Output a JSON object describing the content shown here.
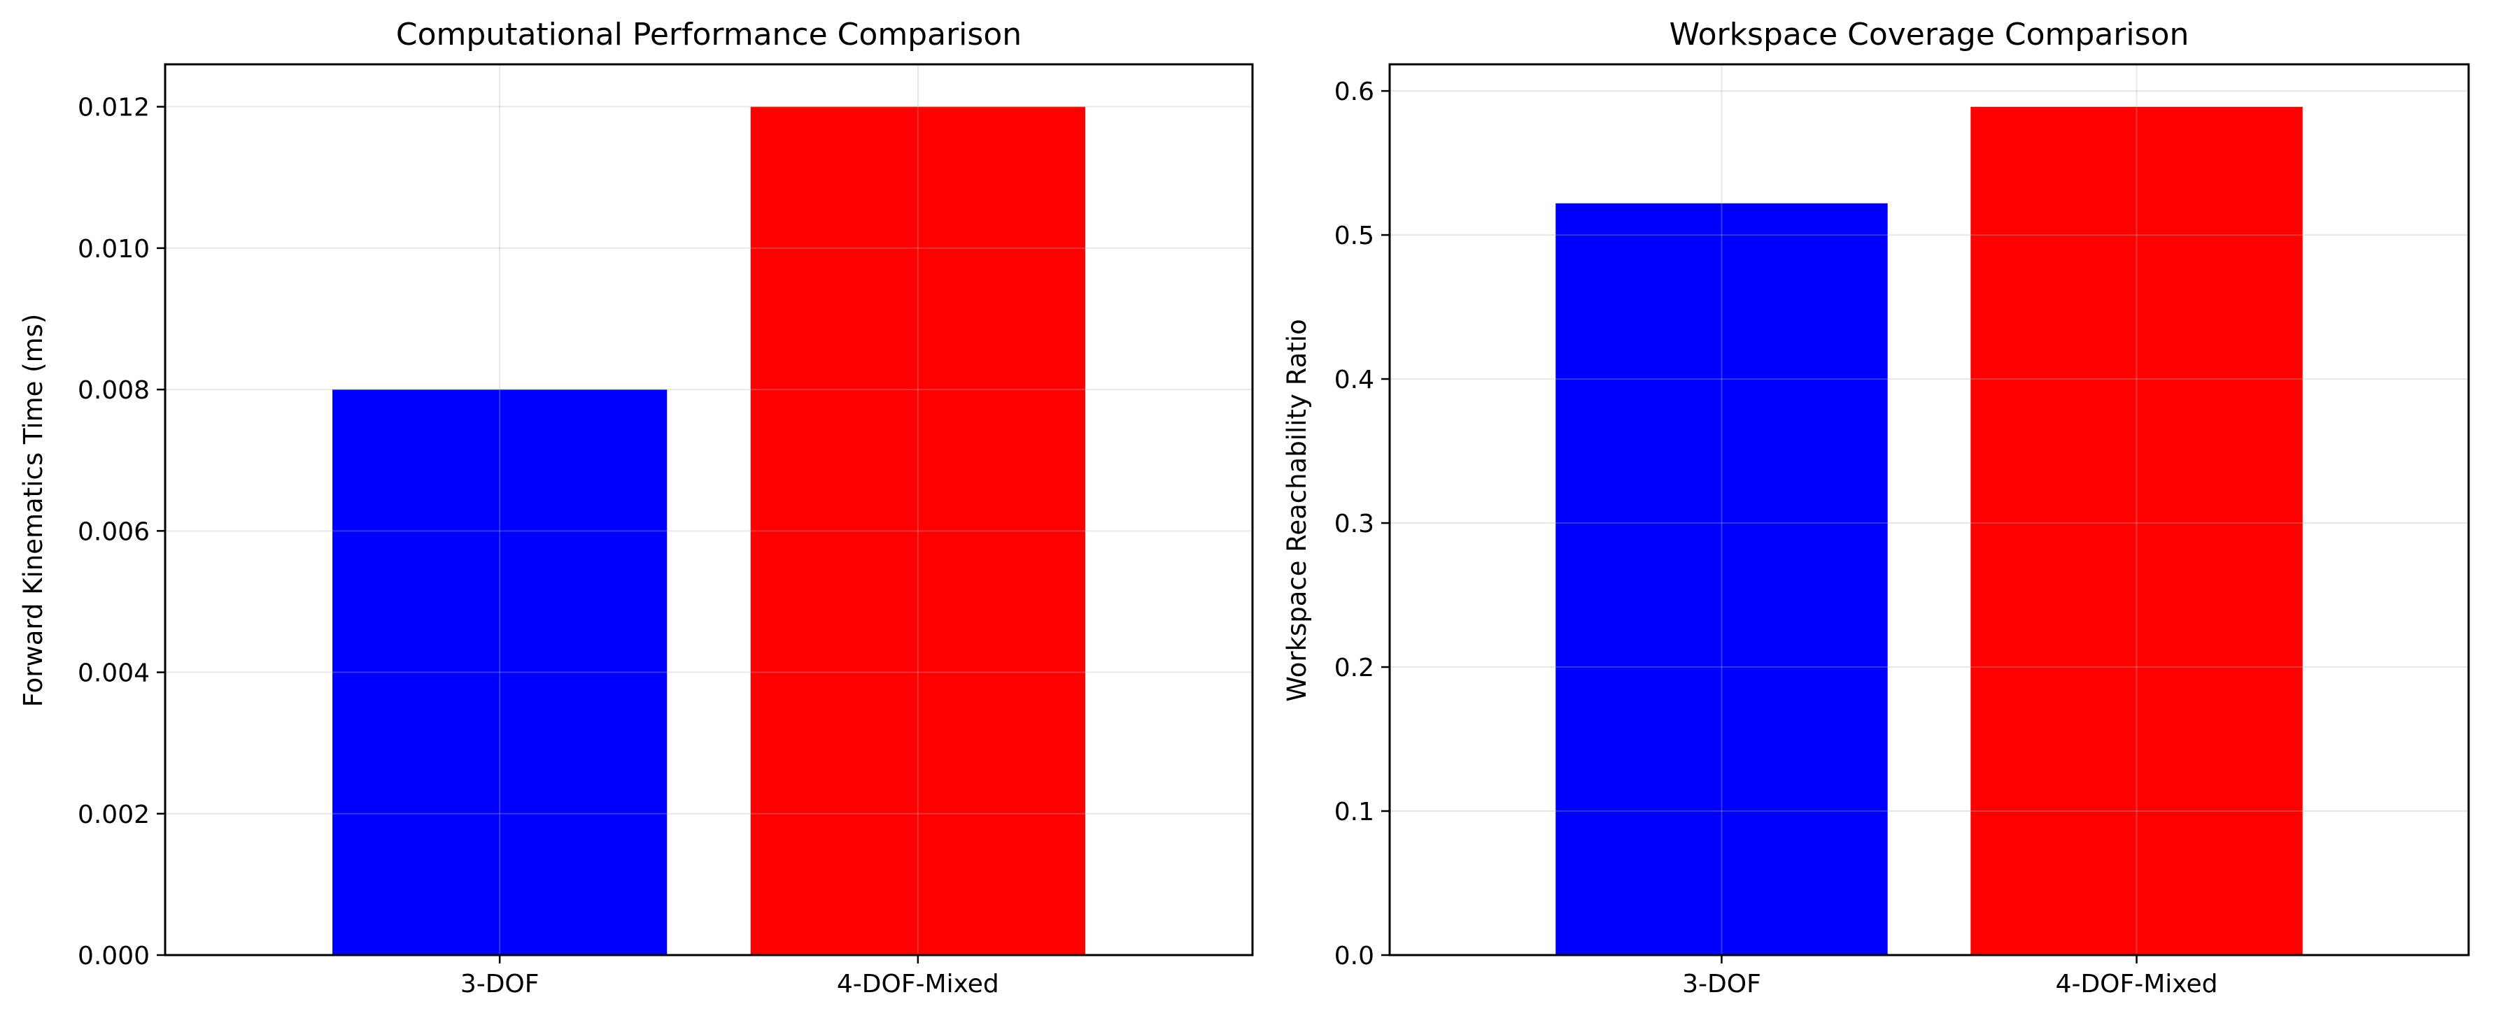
{
  "chart_data": [
    {
      "type": "bar",
      "title": "Computational Performance Comparison",
      "xlabel": "",
      "ylabel": "Forward Kinematics Time (ms)",
      "categories": [
        "3-DOF",
        "4-DOF-Mixed"
      ],
      "values": [
        0.008,
        0.012
      ],
      "colors": [
        "#0000ff",
        "#ff0000"
      ],
      "ylim": [
        0,
        0.0126
      ],
      "yticks": [
        0.0,
        0.002,
        0.004,
        0.006,
        0.008,
        0.01,
        0.012
      ],
      "ytick_labels": [
        "0.000",
        "0.002",
        "0.004",
        "0.006",
        "0.008",
        "0.010",
        "0.012"
      ],
      "grid": true
    },
    {
      "type": "bar",
      "title": "Workspace Coverage Comparison",
      "xlabel": "",
      "ylabel": "Workspace Reachability Ratio",
      "categories": [
        "3-DOF",
        "4-DOF-Mixed"
      ],
      "values": [
        0.522,
        0.589
      ],
      "colors": [
        "#0000ff",
        "#ff0000"
      ],
      "ylim": [
        0,
        0.6185
      ],
      "yticks": [
        0.0,
        0.1,
        0.2,
        0.3,
        0.4,
        0.5,
        0.6
      ],
      "ytick_labels": [
        "0.0",
        "0.1",
        "0.2",
        "0.3",
        "0.4",
        "0.5",
        "0.6"
      ],
      "grid": true
    }
  ]
}
